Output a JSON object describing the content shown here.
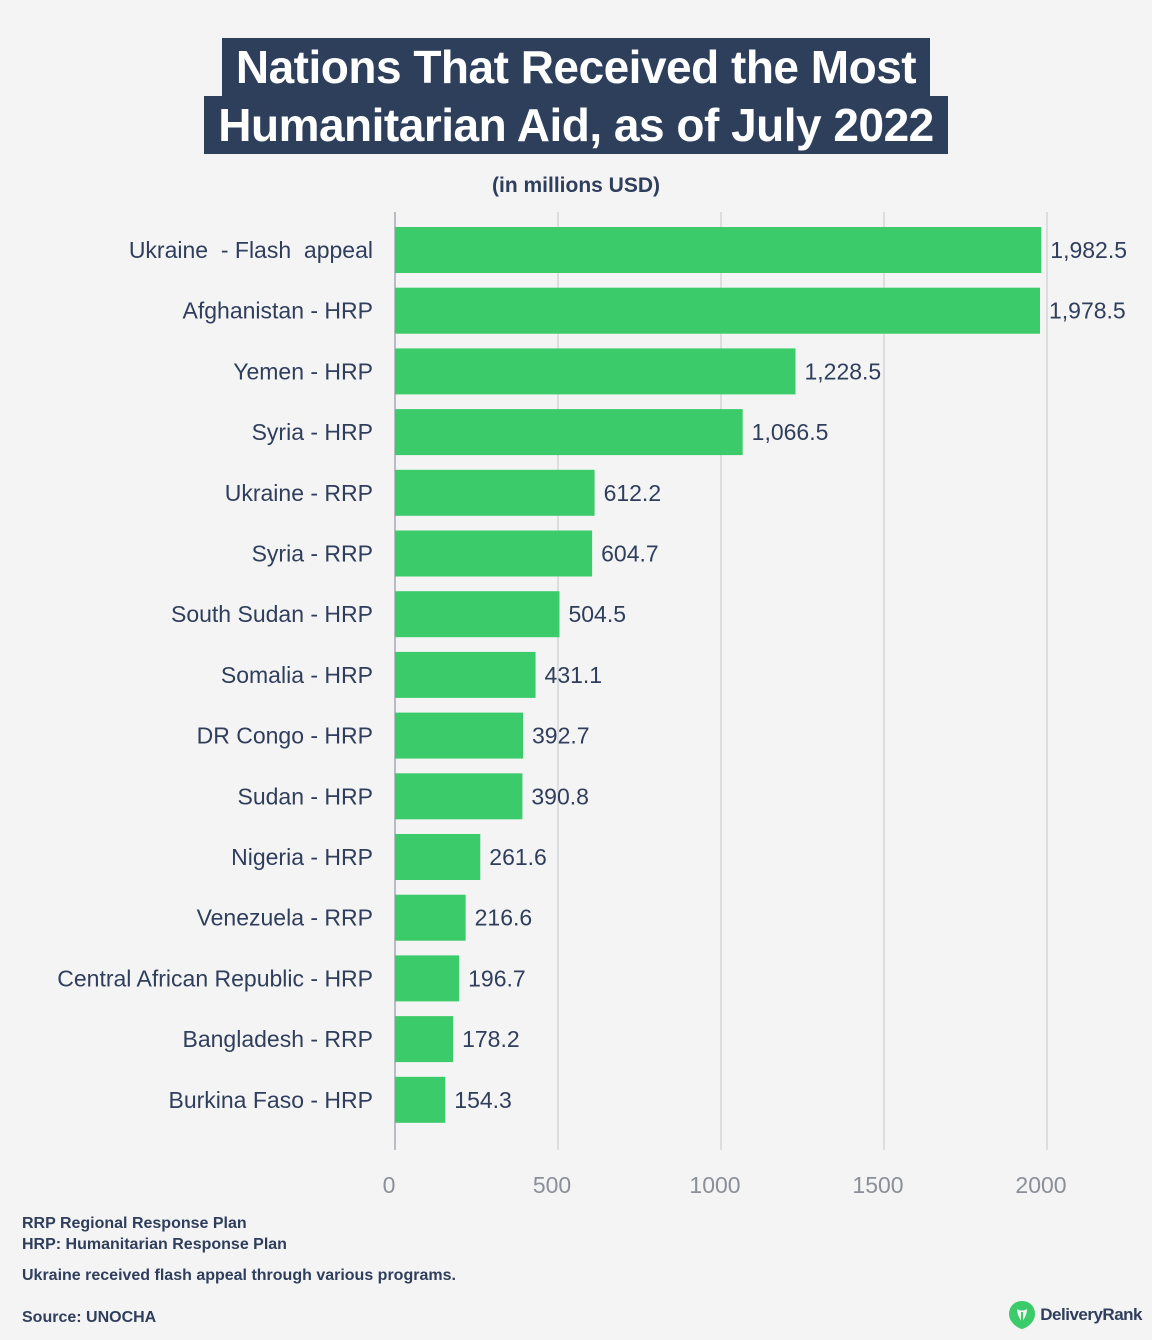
{
  "title_line1": "Nations That Received the Most",
  "title_line2": "Humanitarian Aid, as of July 2022",
  "subtitle": "(in millions USD)",
  "chart_data": {
    "type": "bar",
    "orientation": "horizontal",
    "categories": [
      "Ukraine  - Flash  appeal",
      "Afghanistan - HRP",
      "Yemen - HRP",
      "Syria - HRP",
      "Ukraine - RRP",
      "Syria - RRP",
      "South Sudan - HRP",
      "Somalia - HRP",
      "DR Congo - HRP",
      "Sudan - HRP",
      "Nigeria - HRP",
      "Venezuela - RRP",
      "Central African Republic - HRP",
      "Bangladesh - RRP",
      "Burkina Faso - HRP"
    ],
    "values": [
      1982.5,
      1978.5,
      1228.5,
      1066.5,
      612.2,
      604.7,
      504.5,
      431.1,
      392.7,
      390.8,
      261.6,
      216.6,
      196.7,
      178.2,
      154.3
    ],
    "value_labels": [
      "1,982.5",
      "1,978.5",
      "1,228.5",
      "1,066.5",
      "612.2",
      "604.7",
      "504.5",
      "431.1",
      "392.7",
      "390.8",
      "261.6",
      "216.6",
      "196.7",
      "178.2",
      "154.3"
    ],
    "xticks": [
      0,
      500,
      1000,
      1500,
      2000
    ],
    "xlim": [
      0,
      2000
    ],
    "title": "Nations That Received the Most Humanitarian Aid, as of July 2022",
    "xlabel": "",
    "ylabel": "",
    "grid": true,
    "bar_color": "#3ccb6a"
  },
  "footer": {
    "rrp_def": "RRP Regional Response Plan",
    "hrp_def": "HRP: Humanitarian Response Plan",
    "note": "Ukraine received flash appeal through various programs.",
    "source": "Source: UNOCHA"
  },
  "brand": {
    "name": "DeliveryRank",
    "icon": "delivery-rank-logo-icon",
    "color": "#3ccb6a"
  }
}
